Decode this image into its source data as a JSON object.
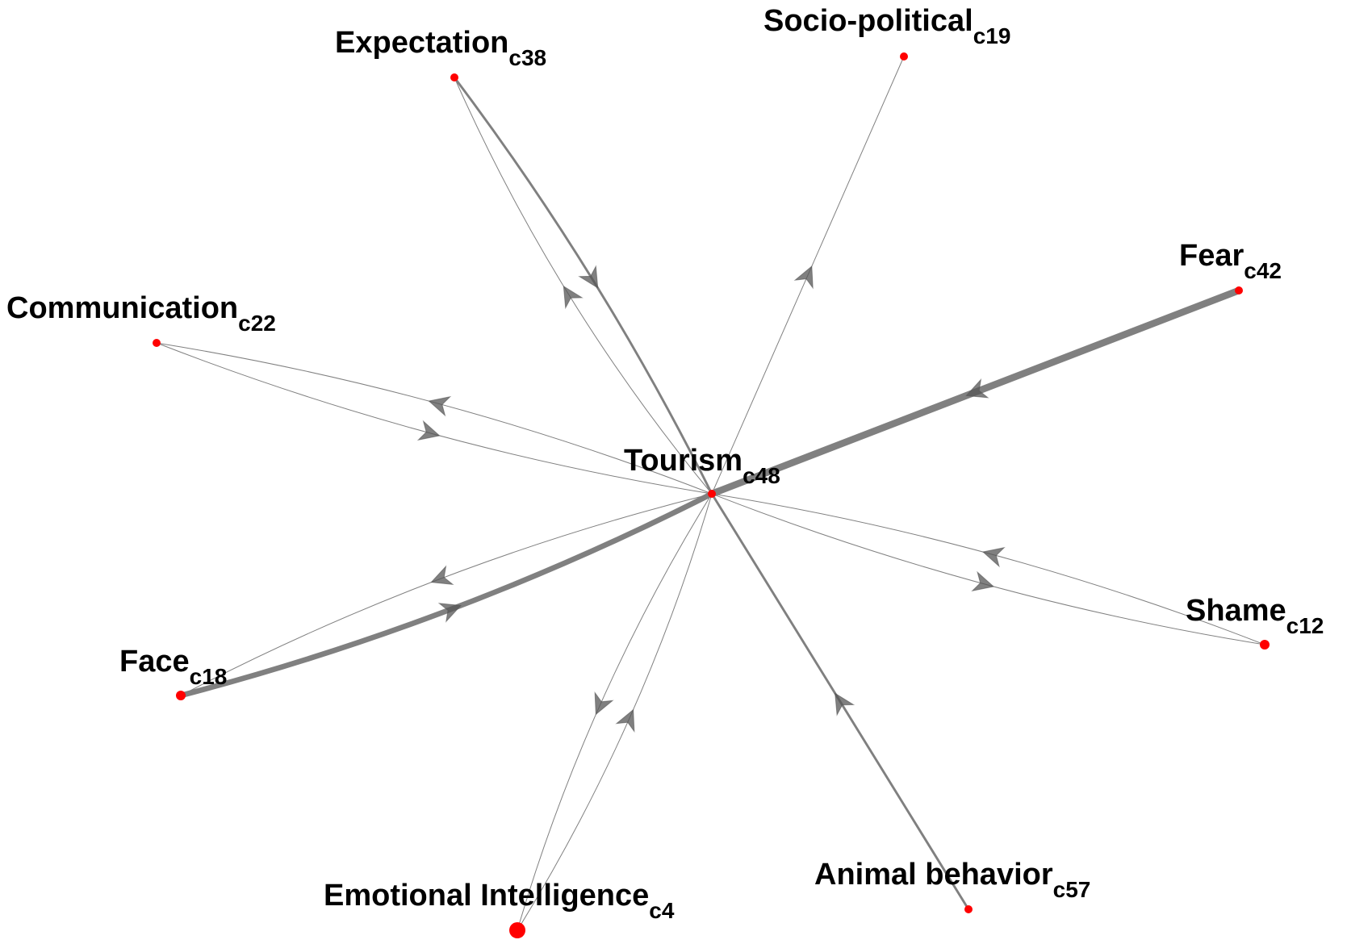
{
  "diagram": {
    "node_color": "#ff0000",
    "edge_color": "#808080",
    "nodes": [
      {
        "id": "tourism",
        "label": "Tourism",
        "code": "c48"
      },
      {
        "id": "expectation",
        "label": "Expectation",
        "code": "c38"
      },
      {
        "id": "sociopolitical",
        "label": "Socio-political",
        "code": "c19"
      },
      {
        "id": "fear",
        "label": "Fear",
        "code": "c42"
      },
      {
        "id": "communication",
        "label": "Communication",
        "code": "c22"
      },
      {
        "id": "shame",
        "label": "Shame",
        "code": "c12"
      },
      {
        "id": "face",
        "label": "Face",
        "code": "c18"
      },
      {
        "id": "emotional",
        "label": "Emotional Intelligence",
        "code": "c4"
      },
      {
        "id": "animal",
        "label": "Animal behavior",
        "code": "c57"
      }
    ],
    "edges": [
      {
        "from": "expectation",
        "to": "tourism",
        "weight": 2
      },
      {
        "from": "tourism",
        "to": "expectation",
        "weight": 1
      },
      {
        "from": "tourism",
        "to": "sociopolitical",
        "weight": 1
      },
      {
        "from": "fear",
        "to": "tourism",
        "weight": 5
      },
      {
        "from": "communication",
        "to": "tourism",
        "weight": 1
      },
      {
        "from": "tourism",
        "to": "communication",
        "weight": 1
      },
      {
        "from": "shame",
        "to": "tourism",
        "weight": 1
      },
      {
        "from": "tourism",
        "to": "shame",
        "weight": 1
      },
      {
        "from": "face",
        "to": "tourism",
        "weight": 4
      },
      {
        "from": "tourism",
        "to": "face",
        "weight": 1
      },
      {
        "from": "tourism",
        "to": "emotional",
        "weight": 1
      },
      {
        "from": "emotional",
        "to": "tourism",
        "weight": 1
      },
      {
        "from": "animal",
        "to": "tourism",
        "weight": 2
      }
    ]
  }
}
